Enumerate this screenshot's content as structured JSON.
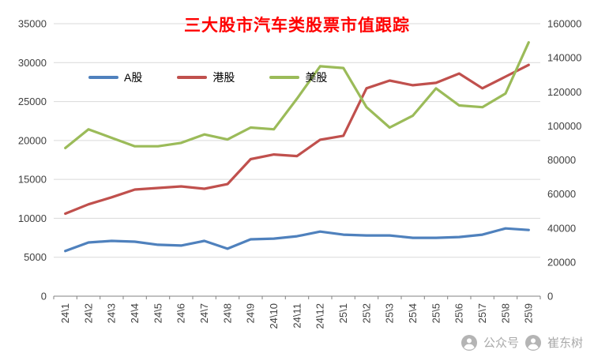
{
  "title": {
    "text": "三大股市汽车类股票市值跟踪",
    "color": "#FF0000"
  },
  "watermark": {
    "account_label": "公众号",
    "account_name": "崔东树"
  },
  "chart_data": {
    "type": "line",
    "title": "三大股市汽车类股票市值跟踪",
    "categories": [
      "24\\1",
      "24\\2",
      "24\\3",
      "24\\4",
      "24\\5",
      "24\\6",
      "24\\7",
      "24\\8",
      "24\\9",
      "24\\10",
      "24\\11",
      "24\\12",
      "25\\1",
      "25\\2",
      "25\\3",
      "25\\4",
      "25\\5",
      "25\\6",
      "25\\7",
      "25\\8",
      "25\\9"
    ],
    "series": [
      {
        "name": "A股",
        "axis": "left",
        "color": "#4F81BD",
        "values": [
          5800,
          6900,
          7100,
          7000,
          6600,
          6500,
          7100,
          6100,
          7300,
          7400,
          7700,
          8300,
          7900,
          7800,
          7800,
          7500,
          7500,
          7600,
          7900,
          8700,
          8500
        ]
      },
      {
        "name": "港股",
        "axis": "left",
        "color": "#C0504D",
        "values": [
          10600,
          11800,
          12700,
          13700,
          13900,
          14100,
          13800,
          14400,
          17600,
          18200,
          18000,
          20100,
          20600,
          26700,
          27700,
          27100,
          27400,
          28600,
          26700,
          28200,
          29700
        ]
      },
      {
        "name": "美股",
        "axis": "right",
        "color": "#9BBB59",
        "values": [
          87000,
          98000,
          93000,
          88000,
          88000,
          90000,
          95000,
          92000,
          99000,
          98000,
          116000,
          135000,
          134000,
          111000,
          99000,
          106000,
          122000,
          112000,
          111000,
          119000,
          149000
        ]
      }
    ],
    "axes": {
      "left": {
        "min": 0,
        "max": 35000,
        "ticks": [
          0,
          5000,
          10000,
          15000,
          20000,
          25000,
          30000,
          35000
        ]
      },
      "right": {
        "min": 0,
        "max": 160000,
        "ticks": [
          0,
          20000,
          40000,
          60000,
          80000,
          100000,
          120000,
          140000,
          160000
        ]
      }
    },
    "grid": true,
    "legend_position": "top-left"
  }
}
